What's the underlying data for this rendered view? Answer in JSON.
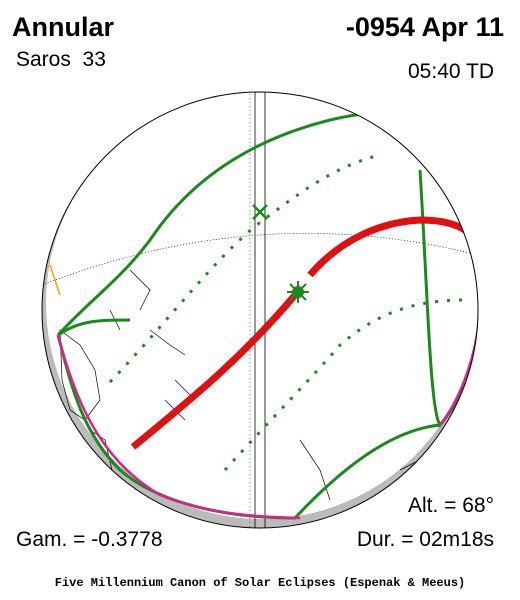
{
  "header": {
    "type": "Annular",
    "saros": "Saros  33",
    "date": "-0954 Apr 11",
    "time": "05:40 TD"
  },
  "parameters": {
    "altitude": "Alt. = 68°",
    "gamma": "Gam. = -0.3778",
    "duration": "Dur. = 02m18s"
  },
  "footer": "Five Millennium Canon of Solar Eclipses (Espenak & Meeus)"
}
